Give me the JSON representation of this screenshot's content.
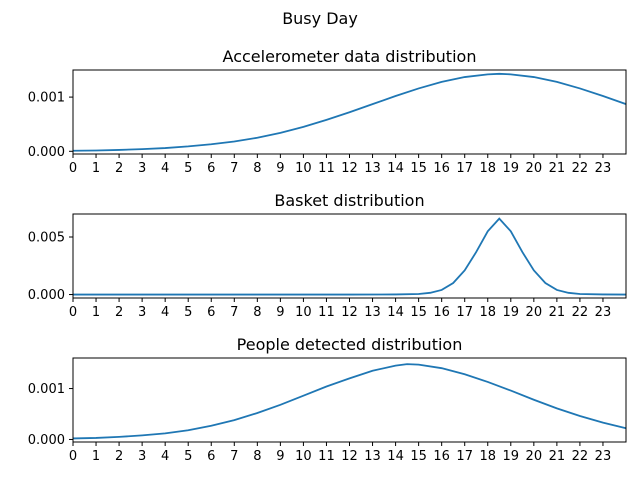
{
  "figure": {
    "title": "Busy Day"
  },
  "chart_data": [
    {
      "type": "line",
      "title": "Accelerometer data distribution",
      "xlabel": "",
      "ylabel": "",
      "xlim": [
        0,
        24
      ],
      "ylim": [
        -5e-05,
        0.0015
      ],
      "xticks": [
        0,
        1,
        2,
        3,
        4,
        5,
        6,
        7,
        8,
        9,
        10,
        11,
        12,
        13,
        14,
        15,
        16,
        17,
        18,
        19,
        20,
        21,
        22,
        23
      ],
      "yticks": [
        {
          "value": 0.0,
          "label": "0.000"
        },
        {
          "value": 0.001,
          "label": "0.001"
        }
      ],
      "series": [
        {
          "color": "#1f77b4",
          "x": [
            0,
            1,
            2,
            3,
            4,
            5,
            6,
            7,
            8,
            9,
            10,
            11,
            12,
            13,
            14,
            15,
            16,
            17,
            18,
            18.5,
            19,
            20,
            21,
            22,
            23,
            24
          ],
          "y": [
            1e-05,
            1.5e-05,
            2.5e-05,
            4e-05,
            6e-05,
            9e-05,
            0.00013,
            0.00018,
            0.00025,
            0.00034,
            0.00045,
            0.00058,
            0.00072,
            0.00087,
            0.00102,
            0.00116,
            0.00128,
            0.00137,
            0.00142,
            0.00143,
            0.00142,
            0.00137,
            0.00128,
            0.00116,
            0.00102,
            0.00087
          ]
        }
      ]
    },
    {
      "type": "line",
      "title": "Basket distribution",
      "xlabel": "",
      "ylabel": "",
      "xlim": [
        0,
        24
      ],
      "ylim": [
        -0.0003,
        0.007
      ],
      "xticks": [
        0,
        1,
        2,
        3,
        4,
        5,
        6,
        7,
        8,
        9,
        10,
        11,
        12,
        13,
        14,
        15,
        16,
        17,
        18,
        19,
        20,
        21,
        22,
        23
      ],
      "yticks": [
        {
          "value": 0.0,
          "label": "0.000"
        },
        {
          "value": 0.005,
          "label": "0.005"
        }
      ],
      "series": [
        {
          "color": "#1f77b4",
          "x": [
            0,
            2,
            4,
            6,
            8,
            10,
            12,
            14,
            15,
            15.5,
            16,
            16.5,
            17,
            17.5,
            18,
            18.5,
            19,
            19.5,
            20,
            20.5,
            21,
            21.5,
            22,
            23,
            24
          ],
          "y": [
            0,
            0,
            0,
            0,
            0,
            0,
            0,
            1e-05,
            5e-05,
            0.00015,
            0.0004,
            0.001,
            0.0021,
            0.0037,
            0.0055,
            0.0066,
            0.0055,
            0.0037,
            0.0021,
            0.001,
            0.0004,
            0.00015,
            5e-05,
            1e-05,
            0
          ]
        }
      ]
    },
    {
      "type": "line",
      "title": "People detected distribution",
      "xlabel": "",
      "ylabel": "",
      "xlim": [
        0,
        24
      ],
      "ylim": [
        -5e-05,
        0.0016
      ],
      "xticks": [
        0,
        1,
        2,
        3,
        4,
        5,
        6,
        7,
        8,
        9,
        10,
        11,
        12,
        13,
        14,
        15,
        16,
        17,
        18,
        19,
        20,
        21,
        22,
        23
      ],
      "yticks": [
        {
          "value": 0.0,
          "label": "0.000"
        },
        {
          "value": 0.001,
          "label": "0.001"
        }
      ],
      "series": [
        {
          "color": "#1f77b4",
          "x": [
            0,
            1,
            2,
            3,
            4,
            5,
            6,
            7,
            8,
            9,
            10,
            11,
            12,
            13,
            14,
            14.5,
            15,
            16,
            17,
            18,
            19,
            20,
            21,
            22,
            23,
            24
          ],
          "y": [
            2e-05,
            3e-05,
            5e-05,
            8e-05,
            0.00012,
            0.00018,
            0.00027,
            0.00038,
            0.00052,
            0.00068,
            0.00086,
            0.00104,
            0.0012,
            0.00135,
            0.00145,
            0.00148,
            0.00147,
            0.0014,
            0.00128,
            0.00113,
            0.00096,
            0.00078,
            0.00061,
            0.00046,
            0.00033,
            0.00022
          ]
        }
      ]
    }
  ]
}
